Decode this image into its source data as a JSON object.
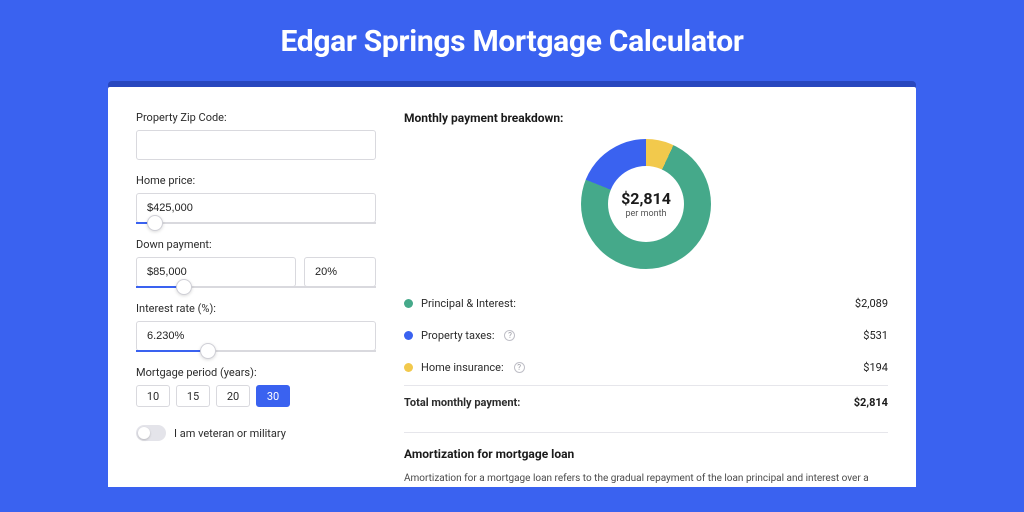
{
  "page": {
    "title": "Edgar Springs Mortgage Calculator",
    "background_color": "#3a62f0",
    "shadow_color": "#2847be",
    "card_bg": "#ffffff"
  },
  "form": {
    "zip": {
      "label": "Property Zip Code:",
      "value": ""
    },
    "home_price": {
      "label": "Home price:",
      "value": "$425,000",
      "slider_pct": 8
    },
    "down_payment": {
      "label": "Down payment:",
      "value": "$85,000",
      "pct_value": "20%",
      "slider_pct": 20
    },
    "interest_rate": {
      "label": "Interest rate (%):",
      "value": "6.230%",
      "slider_pct": 30
    },
    "mortgage_period": {
      "label": "Mortgage period (years):",
      "options": [
        "10",
        "15",
        "20",
        "30"
      ],
      "selected": "30"
    },
    "veteran_toggle": {
      "label": "I am veteran or military",
      "value": false
    }
  },
  "breakdown": {
    "title": "Monthly payment breakdown:",
    "total_amount": "$2,814",
    "total_sub": "per month",
    "items": [
      {
        "label": "Principal & Interest:",
        "value": "$2,089",
        "color": "#45a98a",
        "info": false,
        "pct": 74
      },
      {
        "label": "Property taxes:",
        "value": "$531",
        "color": "#3a62f0",
        "info": true,
        "pct": 19
      },
      {
        "label": "Home insurance:",
        "value": "$194",
        "color": "#f2c94c",
        "info": true,
        "pct": 7
      }
    ],
    "total_label": "Total monthly payment:",
    "total_value": "$2,814"
  },
  "amortization": {
    "title": "Amortization for mortgage loan",
    "text": "Amortization for a mortgage loan refers to the gradual repayment of the loan principal and interest over a specified"
  },
  "donut": {
    "segments": [
      {
        "color": "#f2c94c",
        "start": 0,
        "end": 25
      },
      {
        "color": "#45a98a",
        "start": 25,
        "end": 292
      },
      {
        "color": "#3a62f0",
        "start": 292,
        "end": 360
      }
    ]
  }
}
